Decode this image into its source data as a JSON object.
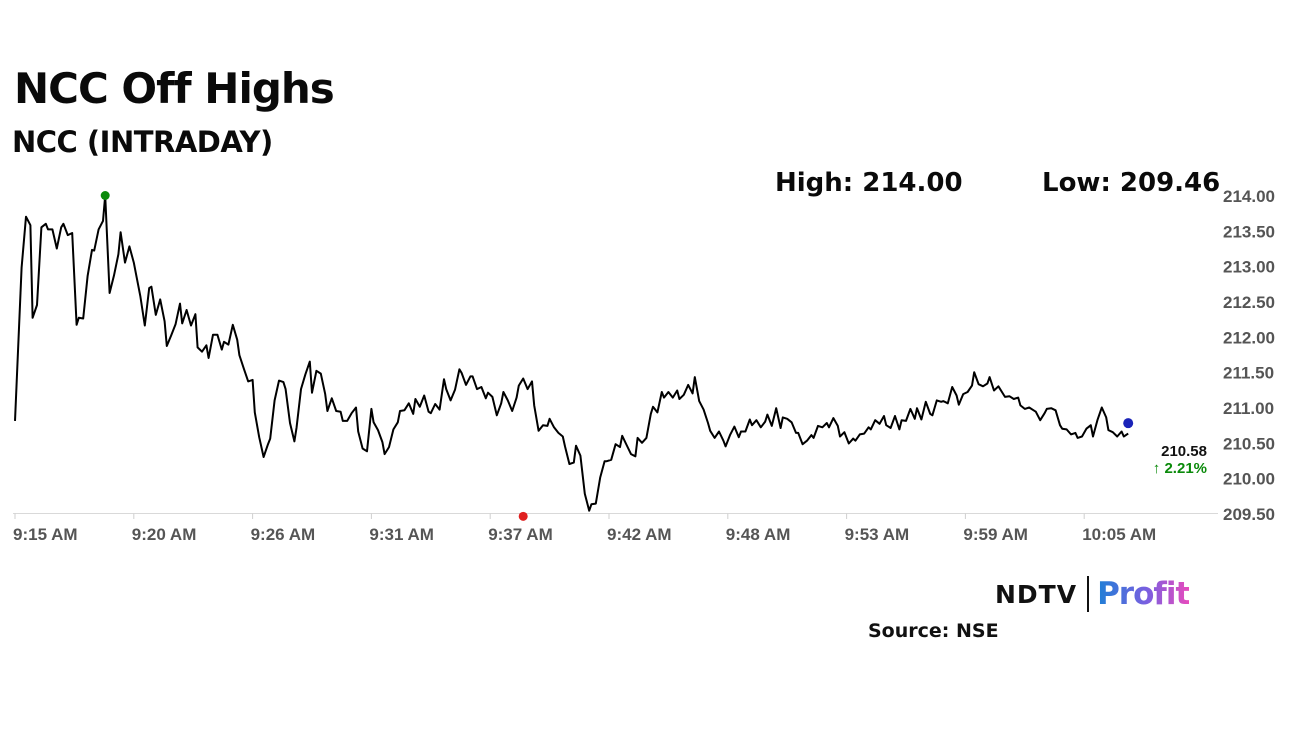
{
  "header": {
    "title": "NCC Off Highs",
    "subtitle": "NCC (INTRADAY)",
    "high_text": "High: 214.00",
    "low_text": "Low: 209.46"
  },
  "footer": {
    "logo_ndtv": "NDTV",
    "logo_profit": "Profit",
    "source": "Source: NSE"
  },
  "colors": {
    "line": "#000000",
    "high_marker": "#0a8a0a",
    "low_marker": "#e02020",
    "last_marker": "#1a23b8",
    "change_positive": "#0a8a0a"
  },
  "chart_data": {
    "type": "line",
    "title": "NCC (INTRADAY)",
    "xlabel": "",
    "ylabel": "",
    "ylim": [
      209.5,
      214.0
    ],
    "yticks": [
      "214.00",
      "213.50",
      "213.00",
      "212.50",
      "212.00",
      "211.50",
      "211.00",
      "210.50",
      "210.00",
      "209.50"
    ],
    "yticks_values": [
      214.0,
      213.5,
      213.0,
      212.5,
      212.0,
      211.5,
      211.0,
      210.5,
      210.0,
      209.5
    ],
    "xticks": [
      "9:15 AM",
      "9:20 AM",
      "9:26 AM",
      "9:31 AM",
      "9:37 AM",
      "9:42 AM",
      "9:48 AM",
      "9:53 AM",
      "9:59 AM",
      "10:05 AM"
    ],
    "xticks_minutes": [
      0,
      5.4,
      10.8,
      16.2,
      21.6,
      27,
      32.4,
      37.8,
      43.2,
      48.6
    ],
    "grid": false,
    "legend": "none",
    "series": [
      {
        "time_minutes": [
          0,
          0.3,
          0.5,
          0.7,
          0.8,
          1,
          1.2,
          1.4,
          1.5,
          1.7,
          1.9,
          2.1,
          2.2,
          2.4,
          2.6,
          2.8,
          2.9,
          3.1,
          3.3,
          3.5,
          3.6,
          3.8,
          4,
          4.1,
          4.3,
          4.5,
          4.7,
          4.8,
          5,
          5.2,
          5.4,
          5.5,
          5.7,
          5.9,
          6.1,
          6.2,
          6.4,
          6.6,
          6.8,
          6.9,
          7.1,
          7.3,
          7.5,
          7.6,
          7.8,
          8,
          8.2,
          8.3,
          8.5,
          8.7,
          8.8,
          9,
          9.2,
          9.4,
          9.5,
          9.7,
          9.9,
          10.1,
          10.2,
          10.4,
          10.6,
          10.8,
          10.9,
          11.1,
          11.3,
          11.5,
          11.6,
          11.8,
          12,
          12.2,
          12.3,
          12.5,
          12.7,
          12.8,
          13,
          13.2,
          13.4,
          13.5,
          13.7,
          13.9,
          14.1,
          14.2,
          14.4,
          14.6,
          14.8,
          14.9,
          15.1,
          15.3,
          15.5,
          15.6,
          15.8,
          16,
          16.2,
          16.3,
          16.5,
          16.7,
          16.8,
          17,
          17.2,
          17.4,
          17.5,
          17.7,
          17.9,
          18.1,
          18.2,
          18.4,
          18.6,
          18.8,
          18.9,
          19.1,
          19.3,
          19.5,
          19.6,
          19.8,
          20,
          20.2,
          20.3,
          20.5,
          20.7,
          20.8,
          21,
          21.2,
          21.4,
          21.5,
          21.7,
          21.9,
          22.1,
          22.2,
          22.4,
          22.6,
          22.8,
          22.9,
          23.1,
          23.3,
          23.5,
          23.6,
          23.8,
          24,
          24.2,
          24.3,
          24.5,
          24.7,
          24.9,
          25,
          25.2,
          25.4,
          25.5,
          25.7,
          25.9,
          26.1,
          26.2,
          26.4,
          26.6,
          26.8,
          26.9,
          27.1,
          27.3,
          27.5,
          27.6,
          27.8,
          28,
          28.2,
          28.3,
          28.5,
          28.7,
          28.9,
          29,
          29.2,
          29.4,
          29.5,
          29.7,
          29.9,
          30.1,
          30.2,
          30.4,
          30.6,
          30.8,
          30.9,
          31.1,
          31.3,
          31.5,
          31.6,
          31.8,
          32,
          32.2,
          32.3,
          32.5,
          32.7,
          32.9,
          33,
          33.2,
          33.4,
          33.5,
          33.7,
          33.9,
          34.1,
          34.2,
          34.4,
          34.6,
          34.8,
          34.9,
          35.1,
          35.3,
          35.5,
          35.6,
          35.8,
          36,
          36.2,
          36.3,
          36.5,
          36.7,
          36.9,
          37,
          37.2,
          37.4,
          37.5,
          37.7,
          37.9,
          38.1,
          38.2,
          38.4,
          38.6,
          38.8,
          38.9,
          39.1,
          39.3,
          39.5,
          39.6,
          39.8,
          40,
          40.2,
          40.3,
          40.5,
          40.7,
          40.9,
          41,
          41.2,
          41.4,
          41.6,
          41.7,
          41.9,
          42.1,
          42.2,
          42.4,
          42.6,
          42.8,
          42.9,
          43.1,
          43.3,
          43.5,
          43.6,
          43.8,
          44,
          44.2,
          44.3,
          44.5,
          44.7,
          44.9,
          45,
          45.2,
          45.4,
          45.6,
          45.7,
          45.9,
          46.1,
          46.3,
          46.4,
          46.6,
          46.8,
          46.9,
          47.1,
          47.3,
          47.5,
          47.6,
          47.8,
          48,
          48.2,
          48.3,
          48.5,
          48.7,
          48.9,
          49,
          49.2,
          49.4,
          49.6,
          49.7,
          49.9,
          50.1,
          50.3,
          50.4,
          50.6
        ],
        "values": [
          210.81,
          212.98,
          213.7,
          213.58,
          212.27,
          212.45,
          213.55,
          213.6,
          213.52,
          213.52,
          213.25,
          213.55,
          213.6,
          213.44,
          213.47,
          212.17,
          212.27,
          212.26,
          212.86,
          213.23,
          213.22,
          213.52,
          213.64,
          214,
          212.62,
          212.87,
          213.17,
          213.48,
          213.05,
          213.28,
          213.05,
          212.89,
          212.57,
          212.16,
          212.69,
          212.71,
          212.31,
          212.53,
          212.22,
          211.87,
          212.02,
          212.18,
          212.47,
          212.19,
          212.38,
          212.16,
          212.32,
          211.85,
          211.79,
          211.88,
          211.7,
          212.03,
          212.03,
          211.82,
          211.93,
          211.89,
          212.17,
          211.96,
          211.74,
          211.55,
          211.37,
          211.39,
          210.93,
          210.58,
          210.3,
          210.48,
          210.56,
          211.1,
          211.38,
          211.36,
          211.26,
          210.78,
          210.52,
          210.72,
          211.26,
          211.47,
          211.65,
          211.21,
          211.52,
          211.48,
          211.19,
          210.95,
          211.13,
          210.95,
          210.94,
          210.81,
          210.81,
          210.92,
          211,
          210.66,
          210.42,
          210.38,
          210.98,
          210.79,
          210.68,
          210.51,
          210.34,
          210.44,
          210.69,
          210.79,
          210.95,
          210.96,
          211.06,
          210.91,
          211.12,
          211.01,
          211.17,
          210.94,
          210.92,
          211.05,
          210.97,
          211.4,
          211.26,
          211.1,
          211.25,
          211.54,
          211.49,
          211.32,
          211.44,
          211.44,
          211.26,
          211.29,
          211.13,
          211.21,
          211.15,
          210.89,
          211.06,
          211.22,
          211.1,
          210.95,
          211.14,
          211.31,
          211.41,
          211.26,
          211.37,
          211.03,
          210.67,
          210.75,
          210.74,
          210.84,
          210.72,
          210.64,
          210.59,
          210.45,
          210.2,
          210.22,
          210.46,
          210.32,
          209.78,
          209.54,
          209.63,
          209.64,
          210.01,
          210.24,
          210.24,
          210.26,
          210.48,
          210.44,
          210.6,
          210.47,
          210.34,
          210.31,
          210.57,
          210.5,
          210.57,
          210.91,
          211.01,
          210.93,
          211.22,
          211.14,
          211.22,
          211.14,
          211.24,
          211.12,
          211.18,
          211.32,
          211.2,
          211.43,
          211.09,
          210.97,
          210.78,
          210.67,
          210.57,
          210.66,
          210.53,
          210.45,
          210.61,
          210.73,
          210.58,
          210.66,
          210.66,
          210.83,
          210.75,
          210.82,
          210.72,
          210.8,
          210.9,
          210.74,
          210.99,
          210.71,
          210.86,
          210.84,
          210.79,
          210.64,
          210.64,
          210.48,
          210.53,
          210.61,
          210.57,
          210.74,
          210.72,
          210.78,
          210.72,
          210.85,
          210.74,
          210.59,
          210.65,
          210.49,
          210.56,
          210.53,
          210.62,
          210.63,
          210.72,
          210.69,
          210.82,
          210.77,
          210.88,
          210.75,
          210.71,
          210.88,
          210.69,
          210.82,
          210.81,
          210.98,
          210.84,
          210.99,
          210.83,
          211.08,
          210.91,
          210.89,
          211.1,
          211.08,
          211.09,
          211.06,
          211.29,
          211.17,
          211.04,
          211.19,
          211.22,
          211.31,
          211.5,
          211.33,
          211.3,
          211.34,
          211.43,
          211.24,
          211.3,
          211.2,
          211.15,
          211.16,
          211.12,
          211.14,
          211.03,
          210.98,
          211,
          210.96,
          210.94,
          210.82,
          210.92,
          210.98,
          210.99,
          210.96,
          210.75,
          210.7,
          210.69,
          210.62,
          210.64,
          210.57,
          210.59,
          210.7,
          210.75,
          210.59,
          210.82,
          211,
          210.86,
          210.68,
          210.65,
          210.59,
          210.66,
          210.59,
          210.63,
          210.59,
          210.67,
          210.59,
          210.59,
          210.59,
          210.55,
          210.56,
          210.52,
          210.42,
          210.26,
          210.35,
          210.43,
          210.39,
          210.28,
          210.12,
          210.22,
          210.21,
          210.31,
          210.42,
          210.35,
          210.16,
          210.22,
          210.58
        ]
      }
    ],
    "annotations": {
      "high": {
        "time_minutes": 4.1,
        "value": 214.0
      },
      "low": {
        "time_minutes": 23.1,
        "value": 209.46
      },
      "last_price": "210.58",
      "change": "↑ 2.21%"
    }
  }
}
